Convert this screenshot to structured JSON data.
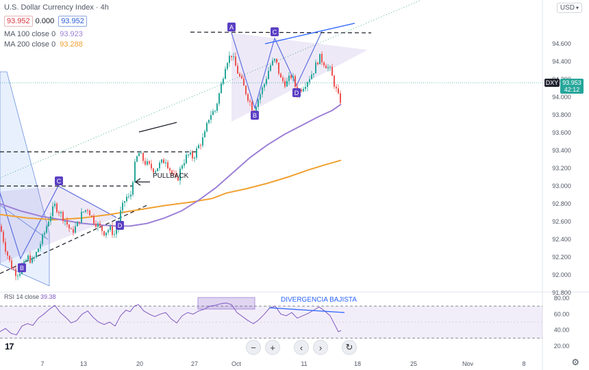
{
  "header": {
    "title": "U.S. Dollar Currency Index · 4h",
    "price_box_left": "93.952",
    "change": "0.000",
    "price_box_right": "93.952",
    "ma100_label": "MA 100 close 0",
    "ma100_value": "93.923",
    "ma200_label": "MA 200 close 0",
    "ma200_value": "93.288"
  },
  "currency_selector": {
    "label": "USD"
  },
  "icons": [
    "chevron-down-icon",
    "minus-icon",
    "plus-icon",
    "chevron-left-icon",
    "chevron-right-icon",
    "reset-icon",
    "gear-icon",
    "tradingview-logo"
  ],
  "toolbar": {
    "zoom_out": "−",
    "zoom_in": "+",
    "scroll_left": "‹",
    "scroll_right": "›",
    "reset": "↻"
  },
  "logo_text": "17",
  "colors": {
    "up": "#26a69a",
    "down": "#ef5350",
    "ma100": "#9c7fd6",
    "ma200": "#f0a030",
    "rsi": "#7e57c2",
    "badge": "#5b3fc4",
    "trendline_blue": "#2962ff",
    "dxy_price": "#26a69a"
  },
  "chart_data": [
    {
      "type": "candlestick",
      "symbol_tag": "DXY",
      "last_price": 93.953,
      "countdown": "42:12",
      "ylim": [
        91.68,
        94.75
      ],
      "y_ticks": [
        "94.600",
        "94.400",
        "94.200",
        "94.000",
        "93.800",
        "93.600",
        "93.400",
        "93.200",
        "93.000",
        "92.800",
        "92.600",
        "92.400",
        "92.200",
        "92.000",
        "91.800"
      ],
      "x_ticks": [
        "7",
        "13",
        "20",
        "27",
        "Oct",
        "11",
        "18",
        "25",
        "Nov",
        "8"
      ],
      "series": [
        {
          "name": "MA 100 close 0",
          "last": 93.923
        },
        {
          "name": "MA 200 close 0",
          "last": 93.288
        }
      ],
      "close_path": [
        [
          0,
          92.55
        ],
        [
          8,
          92.3
        ],
        [
          16,
          92.1
        ],
        [
          24,
          92.02
        ],
        [
          32,
          92.05
        ],
        [
          40,
          92.2
        ],
        [
          48,
          92.15
        ],
        [
          56,
          92.3
        ],
        [
          64,
          92.45
        ],
        [
          72,
          92.65
        ],
        [
          80,
          92.78
        ],
        [
          88,
          92.7
        ],
        [
          96,
          92.6
        ],
        [
          104,
          92.48
        ],
        [
          112,
          92.55
        ],
        [
          120,
          92.7
        ],
        [
          128,
          92.75
        ],
        [
          136,
          92.62
        ],
        [
          144,
          92.55
        ],
        [
          152,
          92.48
        ],
        [
          160,
          92.52
        ],
        [
          168,
          92.45
        ],
        [
          176,
          92.7
        ],
        [
          184,
          92.88
        ],
        [
          190,
          92.85
        ],
        [
          196,
          93.2
        ],
        [
          202,
          93.38
        ],
        [
          210,
          93.28
        ],
        [
          218,
          93.22
        ],
        [
          226,
          93.18
        ],
        [
          234,
          93.25
        ],
        [
          242,
          93.3
        ],
        [
          250,
          93.15
        ],
        [
          258,
          93.05
        ],
        [
          266,
          93.25
        ],
        [
          274,
          93.35
        ],
        [
          282,
          93.32
        ],
        [
          290,
          93.45
        ],
        [
          298,
          93.55
        ],
        [
          306,
          93.8
        ],
        [
          314,
          93.85
        ],
        [
          322,
          94.1
        ],
        [
          330,
          94.4
        ],
        [
          338,
          94.48
        ],
        [
          346,
          94.3
        ],
        [
          354,
          94.15
        ],
        [
          362,
          94.0
        ],
        [
          370,
          93.85
        ],
        [
          378,
          94.0
        ],
        [
          386,
          94.15
        ],
        [
          394,
          94.35
        ],
        [
          402,
          94.42
        ],
        [
          410,
          94.2
        ],
        [
          418,
          94.15
        ],
        [
          426,
          94.25
        ],
        [
          434,
          94.05
        ],
        [
          442,
          94.12
        ],
        [
          450,
          94.2
        ],
        [
          458,
          94.3
        ],
        [
          466,
          94.45
        ],
        [
          474,
          94.38
        ],
        [
          482,
          94.3
        ],
        [
          488,
          94.15
        ],
        [
          494,
          94.0
        ],
        [
          498,
          93.95
        ]
      ],
      "ma100_path": [
        [
          0,
          92.8
        ],
        [
          30,
          92.72
        ],
        [
          60,
          92.66
        ],
        [
          90,
          92.62
        ],
        [
          120,
          92.58
        ],
        [
          150,
          92.56
        ],
        [
          170,
          92.55
        ],
        [
          190,
          92.55
        ],
        [
          215,
          92.58
        ],
        [
          240,
          92.64
        ],
        [
          265,
          92.72
        ],
        [
          290,
          92.84
        ],
        [
          315,
          92.98
        ],
        [
          340,
          93.15
        ],
        [
          365,
          93.32
        ],
        [
          390,
          93.46
        ],
        [
          415,
          93.58
        ],
        [
          440,
          93.68
        ],
        [
          465,
          93.78
        ],
        [
          485,
          93.85
        ],
        [
          498,
          93.92
        ]
      ],
      "ma200_path": [
        [
          0,
          92.68
        ],
        [
          40,
          92.64
        ],
        [
          80,
          92.62
        ],
        [
          120,
          92.64
        ],
        [
          160,
          92.68
        ],
        [
          200,
          92.73
        ],
        [
          240,
          92.78
        ],
        [
          280,
          92.82
        ],
        [
          310,
          92.86
        ],
        [
          330,
          92.92
        ],
        [
          360,
          92.97
        ],
        [
          390,
          93.03
        ],
        [
          420,
          93.1
        ],
        [
          450,
          93.18
        ],
        [
          475,
          93.24
        ],
        [
          498,
          93.29
        ]
      ],
      "annotations": {
        "labels": [
          "A",
          "B",
          "C",
          "D",
          "B",
          "C",
          "D"
        ],
        "pullback": "PULLBACK"
      }
    },
    {
      "type": "line",
      "label": "RSI 14 close",
      "value": "39.38",
      "ylim": [
        20,
        80
      ],
      "y_ticks": [
        "80.00",
        "60.00",
        "40.00",
        "20.00"
      ],
      "bands": [
        30,
        70
      ],
      "annotation": "DIVERGENCIA BAJISTA",
      "path": [
        [
          0,
          38
        ],
        [
          8,
          42
        ],
        [
          16,
          36
        ],
        [
          24,
          34
        ],
        [
          32,
          45
        ],
        [
          40,
          48
        ],
        [
          48,
          46
        ],
        [
          56,
          55
        ],
        [
          64,
          60
        ],
        [
          72,
          66
        ],
        [
          80,
          71
        ],
        [
          88,
          62
        ],
        [
          96,
          56
        ],
        [
          104,
          49
        ],
        [
          112,
          52
        ],
        [
          120,
          60
        ],
        [
          128,
          64
        ],
        [
          136,
          56
        ],
        [
          144,
          50
        ],
        [
          152,
          47
        ],
        [
          160,
          50
        ],
        [
          168,
          45
        ],
        [
          176,
          58
        ],
        [
          184,
          65
        ],
        [
          190,
          63
        ],
        [
          196,
          70
        ],
        [
          202,
          72
        ],
        [
          210,
          64
        ],
        [
          218,
          60
        ],
        [
          226,
          57
        ],
        [
          234,
          60
        ],
        [
          242,
          62
        ],
        [
          250,
          54
        ],
        [
          258,
          49
        ],
        [
          266,
          58
        ],
        [
          274,
          62
        ],
        [
          282,
          60
        ],
        [
          290,
          64
        ],
        [
          298,
          66
        ],
        [
          306,
          70
        ],
        [
          314,
          71
        ],
        [
          322,
          73
        ],
        [
          330,
          74
        ],
        [
          338,
          72
        ],
        [
          346,
          62
        ],
        [
          354,
          57
        ],
        [
          362,
          52
        ],
        [
          370,
          48
        ],
        [
          378,
          53
        ],
        [
          386,
          60
        ],
        [
          394,
          68
        ],
        [
          402,
          70
        ],
        [
          410,
          60
        ],
        [
          418,
          58
        ],
        [
          426,
          62
        ],
        [
          434,
          55
        ],
        [
          442,
          58
        ],
        [
          450,
          61
        ],
        [
          458,
          65
        ],
        [
          466,
          69
        ],
        [
          474,
          64
        ],
        [
          482,
          58
        ],
        [
          488,
          48
        ],
        [
          494,
          38
        ],
        [
          498,
          39.38
        ]
      ]
    }
  ]
}
